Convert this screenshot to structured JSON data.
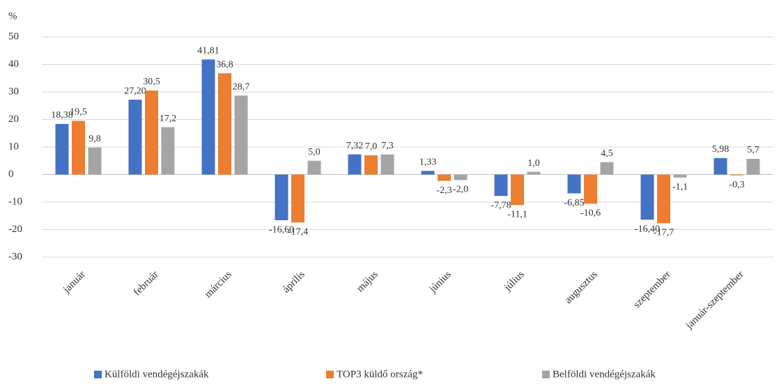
{
  "chart_data": {
    "type": "bar",
    "ylabel": "%",
    "categories": [
      "január",
      "február",
      "március",
      "április",
      "május",
      "június",
      "július",
      "augusztus",
      "szeptember",
      "január-szeptember"
    ],
    "series": [
      {
        "name": "Külföldi vendégéjszakák",
        "color": "#4472c4",
        "values": [
          18.38,
          27.2,
          41.81,
          -16.6,
          7.32,
          1.33,
          -7.78,
          -6.85,
          -16.4,
          5.98
        ],
        "value_labels": [
          "18,38",
          "27,20",
          "41,81",
          "-16,60",
          "7,32",
          "1,33",
          "-7,78",
          "-6,85",
          "-16,40",
          "5,98"
        ]
      },
      {
        "name": "TOP3 küldő ország*",
        "color": "#ed7d31",
        "values": [
          19.5,
          30.5,
          36.8,
          -17.4,
          7.0,
          -2.3,
          -11.1,
          -10.6,
          -17.7,
          -0.3
        ],
        "value_labels": [
          "19,5",
          "30,5",
          "36,8",
          "-17,4",
          "7,0",
          "-2,3",
          "-11,1",
          "-10,6",
          "-17,7",
          "-0,3"
        ]
      },
      {
        "name": "Belföldi vendégéjszakák",
        "color": "#a5a5a5",
        "values": [
          9.8,
          17.2,
          28.7,
          5.0,
          7.3,
          -2.0,
          1.0,
          4.5,
          -1.1,
          5.7
        ],
        "value_labels": [
          "9,8",
          "17,2",
          "28,7",
          "5,0",
          "7,3",
          "-2,0",
          "1,0",
          "4,5",
          "-1,1",
          "5,7"
        ]
      }
    ],
    "ylim": [
      -30,
      50
    ],
    "yticks": [
      -30,
      -20,
      -10,
      0,
      10,
      20,
      30,
      40,
      50
    ],
    "grid": true,
    "legend": "bottom"
  }
}
